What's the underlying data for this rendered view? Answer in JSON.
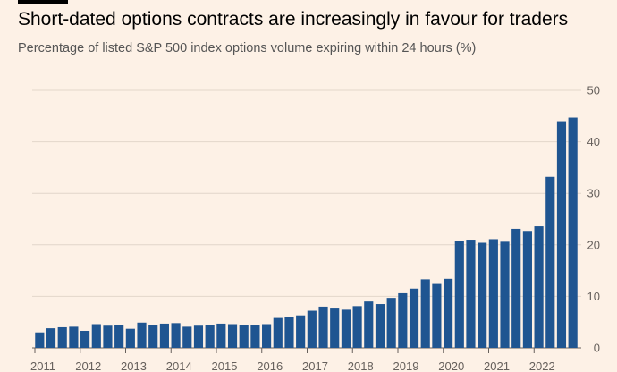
{
  "header": {
    "title": "Short-dated options contracts are increasingly in favour for traders",
    "subtitle": "Percentage of listed S&P 500 index options volume expiring within 24 hours (%)"
  },
  "chart_data": {
    "type": "bar",
    "title": "Short-dated options contracts are increasingly in favour for traders",
    "subtitle": "Percentage of listed S&P 500 index options volume expiring within 24 hours (%)",
    "xlabel": "",
    "ylabel": "",
    "ylim": [
      0,
      50
    ],
    "yticks": [
      0,
      10,
      20,
      30,
      40,
      50
    ],
    "y_axis_side": "right",
    "grid": true,
    "x_tick_labels": [
      "2011",
      "2012",
      "2013",
      "2014",
      "2015",
      "2016",
      "2017",
      "2018",
      "2019",
      "2020",
      "2021",
      "2022"
    ],
    "categories": [
      "2011 Q1",
      "2011 Q2",
      "2011 Q3",
      "2011 Q4",
      "2012 Q1",
      "2012 Q2",
      "2012 Q3",
      "2012 Q4",
      "2013 Q1",
      "2013 Q2",
      "2013 Q3",
      "2013 Q4",
      "2014 Q1",
      "2014 Q2",
      "2014 Q3",
      "2014 Q4",
      "2015 Q1",
      "2015 Q2",
      "2015 Q3",
      "2015 Q4",
      "2016 Q1",
      "2016 Q2",
      "2016 Q3",
      "2016 Q4",
      "2017 Q1",
      "2017 Q2",
      "2017 Q3",
      "2017 Q4",
      "2018 Q1",
      "2018 Q2",
      "2018 Q3",
      "2018 Q4",
      "2019 Q1",
      "2019 Q2",
      "2019 Q3",
      "2019 Q4",
      "2020 Q1",
      "2020 Q2",
      "2020 Q3",
      "2020 Q4",
      "2021 Q1",
      "2021 Q2",
      "2021 Q3",
      "2021 Q4",
      "2022 Q1",
      "2022 Q2",
      "2022 Q3",
      "2022 Q4"
    ],
    "values": [
      3.0,
      3.8,
      4.0,
      4.1,
      3.3,
      4.6,
      4.3,
      4.4,
      3.7,
      4.9,
      4.5,
      4.7,
      4.8,
      4.1,
      4.3,
      4.4,
      4.7,
      4.6,
      4.4,
      4.4,
      4.6,
      5.8,
      6.0,
      6.3,
      7.2,
      8.0,
      7.8,
      7.4,
      8.1,
      9.0,
      8.5,
      9.7,
      10.6,
      11.5,
      13.3,
      12.4,
      13.4,
      20.7,
      21.0,
      20.4,
      21.1,
      20.6,
      23.1,
      22.7,
      23.6,
      33.2,
      44.0,
      44.7
    ],
    "colors": {
      "bar": "#1f5591",
      "background": "#fdf1e6"
    }
  }
}
